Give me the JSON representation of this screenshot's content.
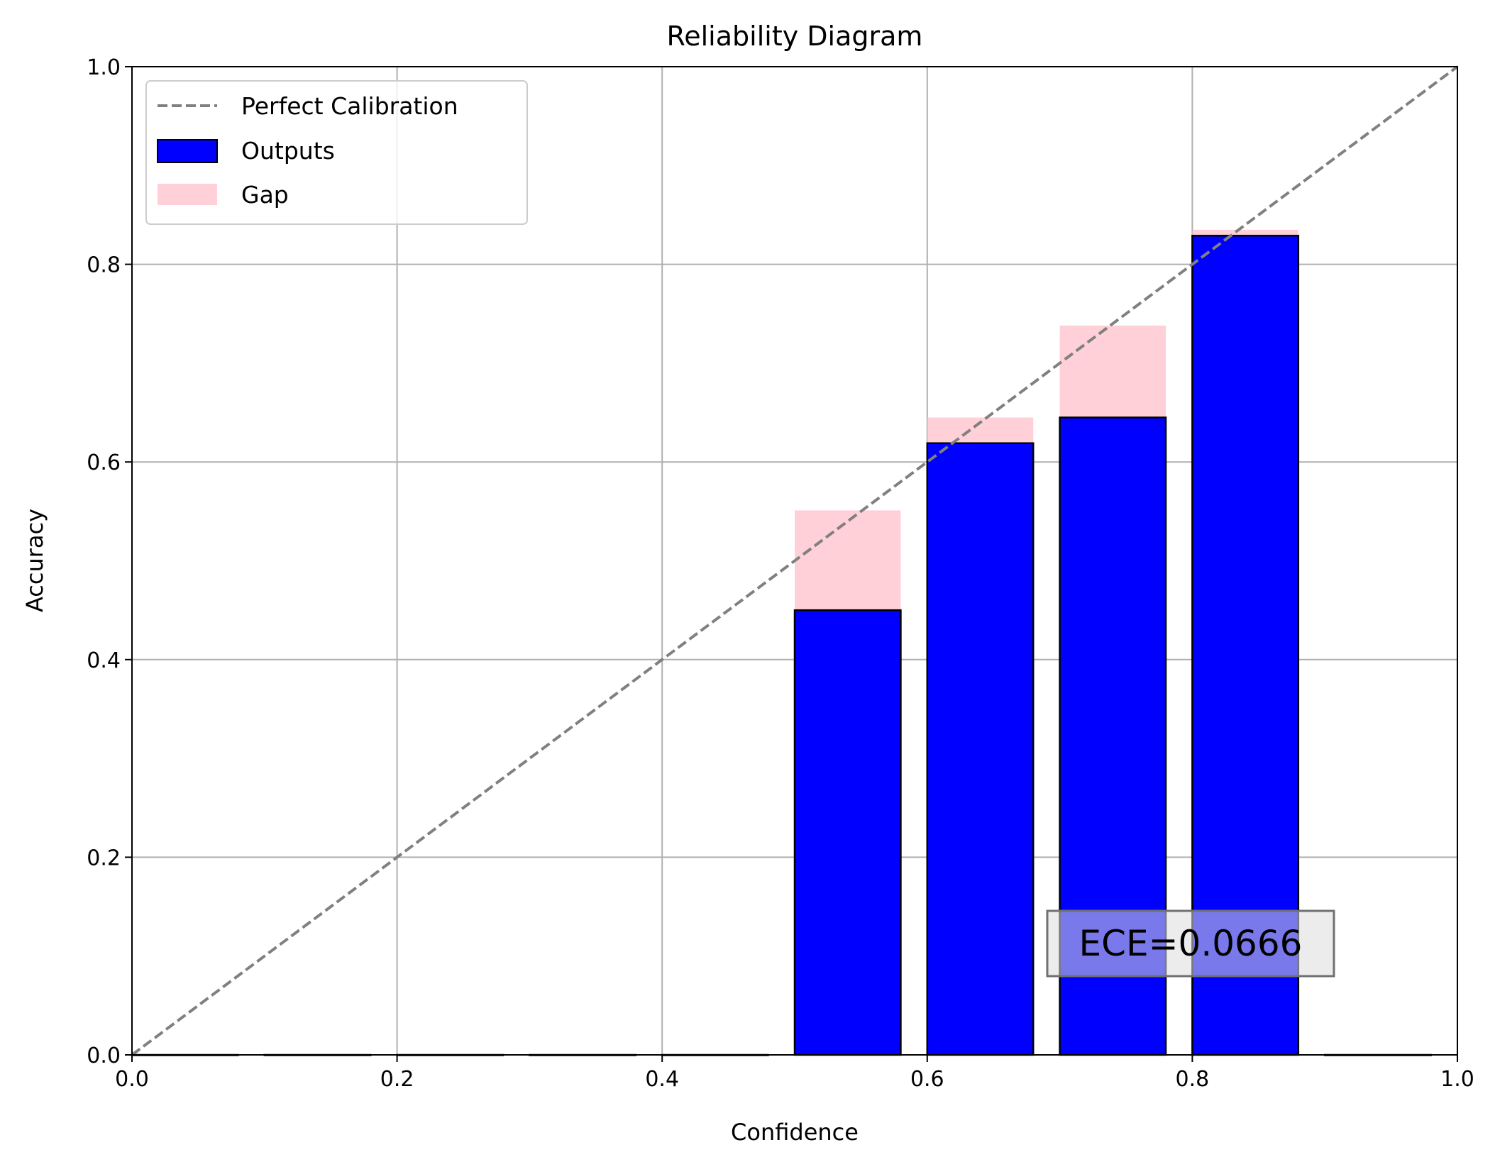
{
  "chart_data": {
    "type": "bar",
    "title": "Reliability Diagram",
    "xlabel": "Confidence",
    "ylabel": "Accuracy",
    "xlim": [
      0.0,
      1.0
    ],
    "ylim": [
      0.0,
      1.0
    ],
    "grid": true,
    "x_ticks": [
      "0.0",
      "0.2",
      "0.4",
      "0.6",
      "0.8",
      "1.0"
    ],
    "y_ticks": [
      "0.0",
      "0.2",
      "0.4",
      "0.6",
      "0.8",
      "1.0"
    ],
    "bin_edges": [
      0.0,
      0.1,
      0.2,
      0.3,
      0.4,
      0.5,
      0.6,
      0.7,
      0.8,
      0.9,
      1.0
    ],
    "bar_width": 0.08,
    "outputs": [
      0,
      0,
      0,
      0,
      0,
      0.45,
      0.619,
      0.645,
      0.829,
      0
    ],
    "gap_top": [
      0,
      0,
      0,
      0,
      0,
      0.551,
      0.645,
      0.738,
      0.835,
      0
    ],
    "perfect_calibration": [
      [
        0,
        0
      ],
      [
        1,
        1
      ]
    ],
    "legend": {
      "placement": "upper-left",
      "entries": [
        {
          "label": "Perfect Calibration",
          "kind": "dashed-line",
          "color": "#808080"
        },
        {
          "label": "Outputs",
          "kind": "patch",
          "color": "#0000ff"
        },
        {
          "label": "Gap",
          "kind": "patch",
          "color": "#ffc0cb"
        }
      ]
    },
    "annotation": "ECE=0.0666",
    "colors": {
      "outputs": "#0000ff",
      "gap": "#ffc0cb",
      "diagonal": "#808080",
      "grid": "#b0b0b0"
    }
  }
}
